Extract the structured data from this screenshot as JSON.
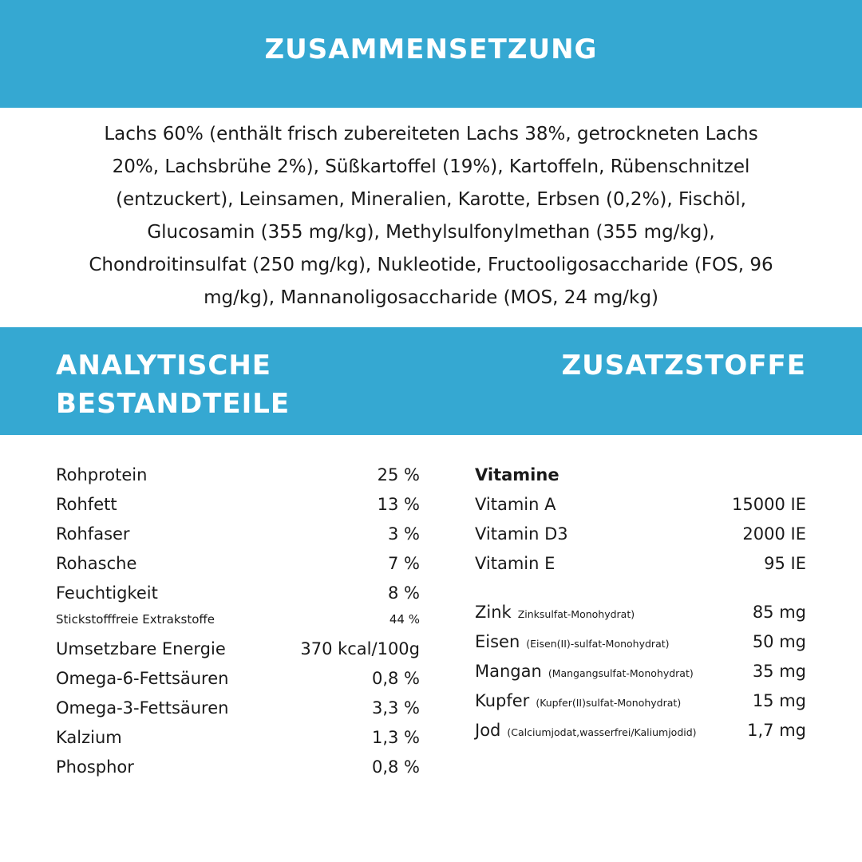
{
  "header": {
    "title": "ZUSAMMENSETZUNG"
  },
  "composition": {
    "lines": [
      "Lachs 60% (enthält frisch zubereiteten Lachs 38%, getrockneten Lachs",
      "20%, Lachsbrühe 2%), Süßkartoffel (19%), Kartoffeln, Rübenschnitzel",
      "(entzuckert), Leinsamen, Mineralien, Karotte, Erbsen (0,2%), Fischöl,",
      "Glucosamin (355 mg/kg), Methylsulfonylmethan (355 mg/kg),",
      "Chondroitinsulfat (250 mg/kg), Nukleotide, Fructooligosaccharide (FOS, 96",
      "mg/kg), Mannanoligosaccharide (MOS, 24 mg/kg)"
    ]
  },
  "analytical": {
    "title": "ANALYTISCHE BESTANDTEILE",
    "rows": [
      {
        "name": "Rohprotein",
        "value": "25 %"
      },
      {
        "name": "Rohfett",
        "value": "13 %"
      },
      {
        "name": "Rohfaser",
        "value": "3 %"
      },
      {
        "name": "Rohasche",
        "value": "7 %"
      },
      {
        "name": "Feuchtigkeit",
        "value": "8 %"
      },
      {
        "name": "Stickstofffreie Extrakstoffe",
        "value": "44 %"
      },
      {
        "name": "Umsetzbare Energie",
        "value": "370 kcal/100g"
      },
      {
        "name": "Omega-6-Fettsäuren",
        "value": "0,8 %"
      },
      {
        "name": "Omega-3-Fettsäuren",
        "value": "3,3 %"
      },
      {
        "name": "Kalzium",
        "value": "1,3 %"
      },
      {
        "name": "Phosphor",
        "value": "0,8 %"
      }
    ]
  },
  "additives": {
    "title": "ZUSATZSTOFFE",
    "vitamins_title": "Vitamine",
    "vitamins": [
      {
        "name": "Vitamin A",
        "value": "15000 IE"
      },
      {
        "name": "Vitamin D3",
        "value": "2000 IE"
      },
      {
        "name": "Vitamin E",
        "value": "95 IE"
      }
    ],
    "minerals": [
      {
        "name": "Zink",
        "source": "Zinksulfat-Monohydrat)",
        "value": "85 mg"
      },
      {
        "name": "Eisen",
        "source": "(Eisen(II)-sulfat-Monohydrat)",
        "value": "50 mg"
      },
      {
        "name": "Mangan",
        "source": "(Mangangsulfat-Monohydrat)",
        "value": "35 mg"
      },
      {
        "name": "Kupfer",
        "source": "(Kupfer(II)sulfat-Monohydrat)",
        "value": "15 mg"
      },
      {
        "name": "Jod",
        "source": "(Calciumjodat,wasserfrei/Kaliumjodid)",
        "value": "1,7 mg"
      }
    ]
  }
}
